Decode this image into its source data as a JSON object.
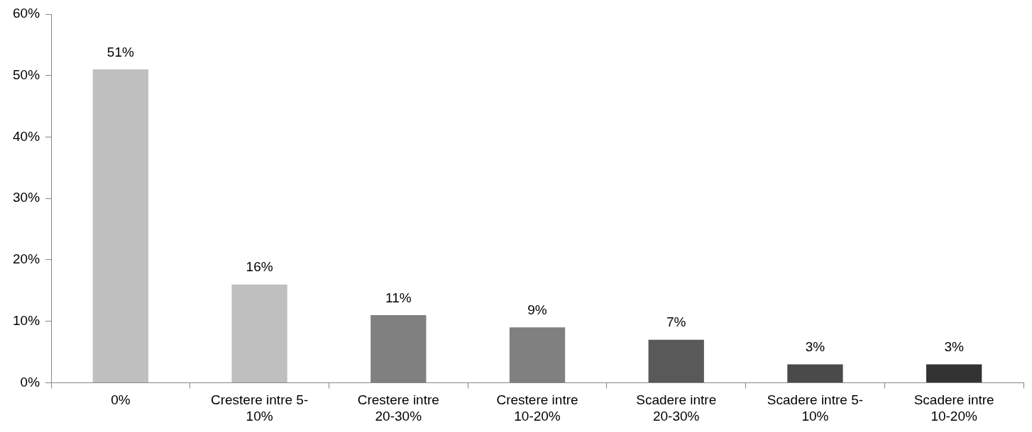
{
  "chart_data": {
    "type": "bar",
    "categories": [
      "0%",
      "Crestere intre 5-\n10%",
      "Crestere intre\n20-30%",
      "Crestere intre\n10-20%",
      "Scadere intre\n20-30%",
      "Scadere intre 5-\n10%",
      "Scadere intre\n10-20%"
    ],
    "values": [
      51,
      16,
      11,
      9,
      7,
      3,
      3
    ],
    "colors": [
      "#bfbfbf",
      "#bfbfbf",
      "#808080",
      "#808080",
      "#595959",
      "#4a4a4a",
      "#333333"
    ],
    "value_labels": [
      "51%",
      "16%",
      "11%",
      "9%",
      "7%",
      "3%",
      "3%"
    ],
    "ylim": [
      0,
      60
    ],
    "yticks": [
      {
        "value": 0,
        "label": "0%"
      },
      {
        "value": 10,
        "label": "10%"
      },
      {
        "value": 20,
        "label": "20%"
      },
      {
        "value": 30,
        "label": "30%"
      },
      {
        "value": 40,
        "label": "40%"
      },
      {
        "value": 50,
        "label": "50%"
      },
      {
        "value": 60,
        "label": "60%"
      }
    ],
    "grid": false,
    "legend": false
  }
}
